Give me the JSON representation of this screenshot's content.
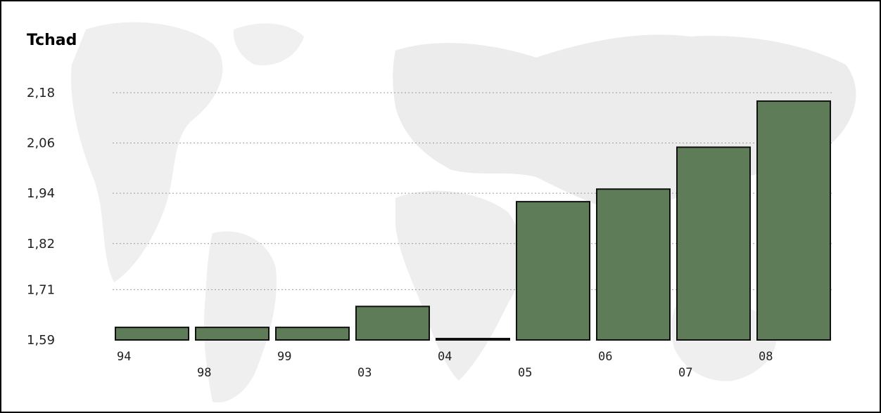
{
  "chart_data": {
    "type": "bar",
    "title": "Tchad",
    "xlabel": "",
    "ylabel": "",
    "categories": [
      "94",
      "98",
      "99",
      "03",
      "04",
      "05",
      "06",
      "07",
      "08"
    ],
    "values": [
      1.62,
      1.62,
      1.62,
      1.67,
      1.59,
      1.92,
      1.95,
      2.05,
      2.16
    ],
    "y_ticks": [
      "1,59",
      "1,71",
      "1,82",
      "1,94",
      "2,06",
      "2,18"
    ],
    "y_tick_values": [
      1.59,
      1.71,
      1.82,
      1.94,
      2.06,
      2.18
    ],
    "ylim": [
      1.59,
      2.18
    ],
    "grid": true,
    "legend": "none",
    "bar_color": "#5e7c58",
    "bar_border_color": "#111111",
    "background": "faint grey world map"
  }
}
